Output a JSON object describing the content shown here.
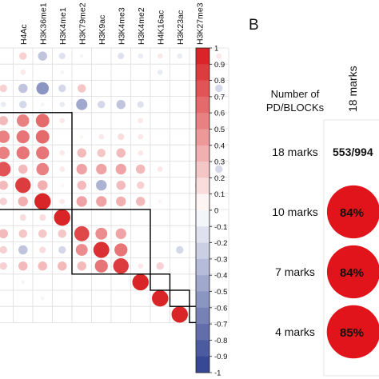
{
  "panel_b_letter": "B",
  "chart_data": [
    {
      "type": "heatmap",
      "subtype": "correlation-circles",
      "column_labels": [
        "H4Ac",
        "H3K36me1",
        "H3K4me1",
        "H3K79me2",
        "H3K9ac",
        "H3K4me3",
        "H3K4me2",
        "H4K16ac",
        "H3K23ac",
        "H3K27me3"
      ],
      "first_visible_column": 1,
      "visible_column_count": 12,
      "colorbar": {
        "range": [
          -1,
          1
        ],
        "tick_labels": [
          "1",
          "0.9",
          "0.8",
          "0.7",
          "0.6",
          "0.5",
          "0.4",
          "0.3",
          "0.2",
          "0.1",
          "0",
          "-0.1",
          "-0.2",
          "-0.3",
          "-0.4",
          "-0.5",
          "-0.6",
          "-0.7",
          "-0.8",
          "-0.9",
          "-1"
        ],
        "positive_color": "#d7191c",
        "negative_color": "#2c3e8f"
      },
      "values": [
        [
          0.0,
          0.2,
          -0.3,
          -0.15,
          -0.05,
          0.0,
          -0.15,
          -0.1,
          0.1,
          -0.1,
          -0.05,
          0.1
        ],
        [
          0.0,
          0.1,
          0.0,
          -0.05,
          0.0,
          0.0,
          0.0,
          0.0,
          -0.1,
          0.0,
          0.0,
          0.0
        ],
        [
          0.2,
          -0.3,
          -0.55,
          -0.2,
          0.25,
          0.0,
          0.0,
          0.0,
          0.0,
          0.0,
          -0.15,
          -0.2
        ],
        [
          -0.1,
          -0.2,
          -0.05,
          -0.1,
          -0.45,
          -0.2,
          -0.3,
          -0.15,
          0.0,
          0.0,
          0.0,
          0.0
        ],
        [
          0.3,
          0.55,
          0.65,
          0.1,
          0.0,
          0.0,
          0.0,
          0.1,
          0.0,
          0.0,
          0.0,
          0.0
        ],
        [
          0.55,
          0.6,
          0.65,
          0.0,
          0.05,
          0.1,
          0.15,
          0.1,
          0.0,
          0.0,
          0.0,
          0.0
        ],
        [
          0.55,
          0.6,
          0.6,
          0.1,
          0.3,
          0.25,
          0.3,
          0.1,
          0.0,
          0.0,
          0.0,
          0.0
        ],
        [
          0.75,
          0.3,
          0.55,
          0.1,
          0.4,
          0.4,
          0.4,
          0.3,
          0.1,
          0.0,
          0.0,
          -0.2
        ],
        [
          0.3,
          0.85,
          0.35,
          0.05,
          0.3,
          -0.4,
          0.3,
          0.2,
          0.0,
          0.0,
          -0.25,
          0.0
        ],
        [
          0.2,
          0.35,
          0.95,
          0.1,
          0.4,
          0.4,
          0.35,
          0.3,
          0.05,
          0.0,
          0.0,
          0.0
        ],
        [
          0.0,
          0.15,
          0.15,
          0.95,
          0.0,
          0.0,
          0.0,
          0.0,
          0.0,
          0.0,
          0.0,
          0.0
        ],
        [
          0.3,
          0.25,
          0.25,
          0.25,
          0.8,
          0.5,
          0.4,
          0.0,
          0.0,
          0.0,
          -0.15,
          0.0
        ],
        [
          0.2,
          -0.3,
          0.15,
          -0.2,
          0.5,
          0.9,
          0.6,
          0.0,
          0.0,
          -0.2,
          0.0,
          0.0
        ],
        [
          0.2,
          0.3,
          0.3,
          0.3,
          0.3,
          0.6,
          0.85,
          0.1,
          0.2,
          0.0,
          0.0,
          0.0
        ],
        [
          0.0,
          -0.05,
          0.0,
          0.0,
          0.0,
          0.0,
          0.0,
          0.95,
          0.0,
          0.0,
          0.0,
          0.0
        ],
        [
          0.0,
          0.0,
          -0.05,
          0.0,
          0.0,
          0.0,
          0.0,
          0.0,
          0.95,
          0.0,
          0.0,
          0.0
        ],
        [
          0.0,
          0.0,
          0.0,
          0.0,
          0.0,
          0.0,
          0.0,
          0.0,
          0.0,
          0.95,
          0.0,
          0.0
        ]
      ],
      "cluster_boxes": [
        {
          "rows": [
            4,
            9
          ],
          "cols": [
            -1,
            2
          ]
        },
        {
          "rows": [
            10,
            13
          ],
          "cols": [
            3,
            6
          ]
        },
        {
          "rows": [
            14,
            14
          ],
          "cols": [
            7,
            7
          ]
        },
        {
          "rows": [
            15,
            15
          ],
          "cols": [
            8,
            8
          ]
        },
        {
          "rows": [
            16,
            16
          ],
          "cols": [
            9,
            9
          ]
        }
      ]
    },
    {
      "type": "table",
      "header_row_label": "Number of PD/BLOCKs",
      "column_header": "18 marks",
      "rows": [
        {
          "label": "18 marks",
          "cell_text": "553/994",
          "fraction": 0.0
        },
        {
          "label": "10 marks",
          "cell_text": "84%",
          "fraction": 0.84
        },
        {
          "label": "7 marks",
          "cell_text": "84%",
          "fraction": 0.84
        },
        {
          "label": "4 marks",
          "cell_text": "85%",
          "fraction": 0.85
        }
      ],
      "circle_color": "#e0141a"
    }
  ]
}
